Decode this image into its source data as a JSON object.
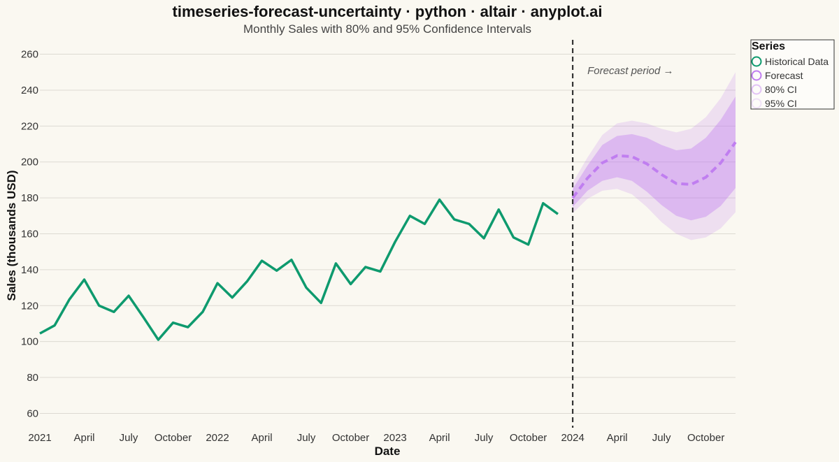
{
  "chart_data": {
    "type": "line",
    "title": "timeseries-forecast-uncertainty · python · altair · anyplot.ai",
    "subtitle": "Monthly Sales with 80% and 95% Confidence Intervals",
    "xlabel": "Date",
    "ylabel": "Sales (thousands USD)",
    "ylim": [
      52,
      268
    ],
    "xlim": [
      "2021-01",
      "2024-12"
    ],
    "grid": true,
    "y_ticks": [
      60,
      80,
      100,
      120,
      140,
      160,
      180,
      200,
      220,
      240,
      260
    ],
    "x_ticks": [
      {
        "date": "2021-01",
        "label": "2021"
      },
      {
        "date": "2021-04",
        "label": "April"
      },
      {
        "date": "2021-07",
        "label": "July"
      },
      {
        "date": "2021-10",
        "label": "October"
      },
      {
        "date": "2022-01",
        "label": "2022"
      },
      {
        "date": "2022-04",
        "label": "April"
      },
      {
        "date": "2022-07",
        "label": "July"
      },
      {
        "date": "2022-10",
        "label": "October"
      },
      {
        "date": "2023-01",
        "label": "2023"
      },
      {
        "date": "2023-04",
        "label": "April"
      },
      {
        "date": "2023-07",
        "label": "July"
      },
      {
        "date": "2023-10",
        "label": "October"
      },
      {
        "date": "2024-01",
        "label": "2024"
      },
      {
        "date": "2024-04",
        "label": "April"
      },
      {
        "date": "2024-07",
        "label": "July"
      },
      {
        "date": "2024-10",
        "label": "October"
      }
    ],
    "forecast_start": "2024-01",
    "annotation": "Forecast period →",
    "series": [
      {
        "name": "Historical Data",
        "color": "#0E9A6E",
        "x": [
          "2021-01",
          "2021-02",
          "2021-03",
          "2021-04",
          "2021-05",
          "2021-06",
          "2021-07",
          "2021-08",
          "2021-09",
          "2021-10",
          "2021-11",
          "2021-12",
          "2022-01",
          "2022-02",
          "2022-03",
          "2022-04",
          "2022-05",
          "2022-06",
          "2022-07",
          "2022-08",
          "2022-09",
          "2022-10",
          "2022-11",
          "2022-12",
          "2023-01",
          "2023-02",
          "2023-03",
          "2023-04",
          "2023-05",
          "2023-06",
          "2023-07",
          "2023-08",
          "2023-09",
          "2023-10",
          "2023-11",
          "2023-12"
        ],
        "values": [
          104.5,
          109,
          123.5,
          134.5,
          120,
          116.5,
          125.5,
          113.5,
          101,
          110.5,
          108,
          116.5,
          132.5,
          124.5,
          133.5,
          145,
          139.5,
          145.5,
          130,
          121.5,
          143.5,
          132,
          141.5,
          139,
          155.5,
          170,
          165.5,
          179,
          168,
          165.5,
          157.5,
          173.5,
          158,
          154,
          177,
          171
        ]
      },
      {
        "name": "Forecast",
        "color": "#C07EF0",
        "x": [
          "2024-01",
          "2024-02",
          "2024-03",
          "2024-04",
          "2024-05",
          "2024-06",
          "2024-07",
          "2024-08",
          "2024-09",
          "2024-10",
          "2024-11",
          "2024-12"
        ],
        "values": [
          180,
          191,
          199.5,
          203.5,
          203,
          199,
          193,
          188,
          187.5,
          191.5,
          199.5,
          211
        ]
      },
      {
        "name": "80% CI",
        "color": "#C07EF0",
        "lower": [
          175,
          184,
          189.5,
          191.5,
          189.5,
          183.5,
          176,
          170,
          167.5,
          169.5,
          175.5,
          185.5
        ],
        "upper": [
          185,
          198,
          209.5,
          214.5,
          215.5,
          213.5,
          209.5,
          206.5,
          207.5,
          213.5,
          223.5,
          236.5
        ]
      },
      {
        "name": "95% CI",
        "color": "#C07EF0",
        "lower": [
          171.5,
          179.5,
          184,
          185,
          182,
          175,
          166.5,
          160,
          156.5,
          158,
          163,
          172
        ],
        "upper": [
          188.5,
          202.5,
          215,
          221.5,
          223,
          221.5,
          218.5,
          216.5,
          218.5,
          225,
          235.5,
          250
        ]
      }
    ],
    "legend": {
      "title": "Series",
      "placement": "top-right",
      "items": [
        {
          "label": "Historical Data",
          "color": "#0E9A6E",
          "opacity": 1.0
        },
        {
          "label": "Forecast",
          "color": "#C07EF0",
          "opacity": 1.0
        },
        {
          "label": "80% CI",
          "color": "#C07EF0",
          "opacity": 0.45
        },
        {
          "label": "95% CI",
          "color": "#C07EF0",
          "opacity": 0.2
        }
      ]
    }
  }
}
